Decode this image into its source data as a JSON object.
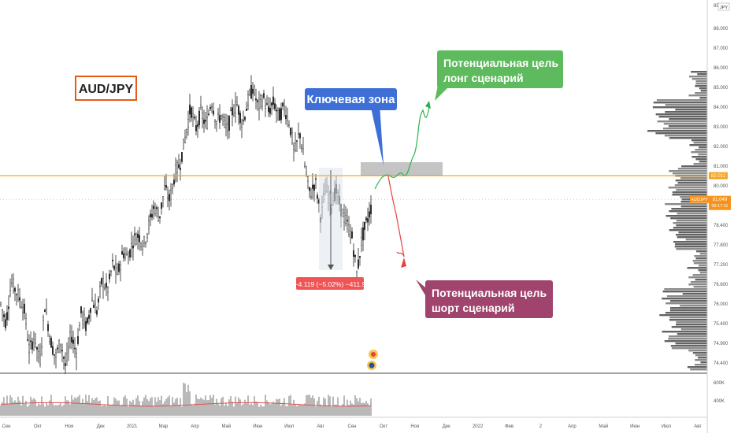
{
  "chart_data": {
    "type": "candlestick",
    "symbol": "AUD/JPY",
    "price_axis_ticks": [
      "88.000",
      "87.000",
      "86.000",
      "85.000",
      "84.000",
      "83.000",
      "82.000",
      "81.000",
      "80.000",
      "79.000",
      "78.400",
      "77.800",
      "77.200",
      "76.600",
      "76.000",
      "75.400",
      "74.900",
      "74.400"
    ],
    "price_axis_top": "85",
    "currency_badge": "JPY",
    "time_axis": [
      "Сен",
      "Окт",
      "Ноя",
      "Дек",
      "2021",
      "Мар",
      "Апр",
      "Май",
      "Июн",
      "Июл",
      "Авг",
      "Сен",
      "Окт",
      "Ноя",
      "Дек",
      "2022",
      "Фев",
      "2",
      "Апр",
      "Май",
      "Июн",
      "Июл",
      "Авг"
    ],
    "volume_axis_ticks": [
      "600K",
      "400K"
    ],
    "levels": [
      {
        "name": "key-level",
        "value": 82.011,
        "label": "82.011",
        "color": "#f5a623"
      },
      {
        "name": "last-price",
        "value": 81.049,
        "label": "81.049",
        "sublabel": "09:17:11",
        "tag": "AUDJPY",
        "color": "#f7931a"
      }
    ],
    "annotations": {
      "key_zone": "Ключевая зона",
      "long_target_line1": "Потенциальная цель",
      "long_target_line2": "лонг сценарий",
      "short_target_line1": "Потенциальная цель",
      "short_target_line2": "шорт сценарий",
      "drop_measure": "−4.119 (−5.02%) −411.9"
    },
    "colors": {
      "long": "#5dba5d",
      "short": "#a0446e",
      "key_zone": "#3d6fd6",
      "measure": "#f05454",
      "candles": "#222222",
      "volume_ma": "#e05050"
    },
    "price_path": [
      [
        0,
        76.8
      ],
      [
        4,
        76.0
      ],
      [
        8,
        77.7
      ],
      [
        12,
        77.3
      ],
      [
        18,
        76.6
      ],
      [
        22,
        74.9
      ],
      [
        26,
        75.5
      ],
      [
        30,
        74.4
      ],
      [
        34,
        76.8
      ],
      [
        38,
        75.4
      ],
      [
        42,
        74.6
      ],
      [
        46,
        75.3
      ],
      [
        50,
        74.2
      ],
      [
        54,
        75.6
      ],
      [
        58,
        74.8
      ],
      [
        62,
        76.5
      ],
      [
        66,
        75.8
      ],
      [
        70,
        77.0
      ],
      [
        74,
        76.5
      ],
      [
        78,
        77.8
      ],
      [
        82,
        77.3
      ],
      [
        86,
        78.4
      ],
      [
        90,
        78.0
      ],
      [
        94,
        78.9
      ],
      [
        98,
        78.7
      ],
      [
        102,
        79.4
      ],
      [
        106,
        79.6
      ],
      [
        110,
        79.2
      ],
      [
        114,
        80.0
      ],
      [
        118,
        80.8
      ],
      [
        122,
        80.3
      ],
      [
        126,
        81.5
      ],
      [
        130,
        81.0
      ],
      [
        134,
        82.1
      ],
      [
        138,
        82.5
      ],
      [
        142,
        83.6
      ],
      [
        146,
        84.8
      ],
      [
        150,
        83.9
      ],
      [
        154,
        84.6
      ],
      [
        158,
        84.0
      ],
      [
        162,
        85.1
      ],
      [
        166,
        84.2
      ],
      [
        170,
        84.5
      ],
      [
        174,
        83.8
      ],
      [
        178,
        84.6
      ],
      [
        182,
        84.9
      ],
      [
        186,
        84.1
      ],
      [
        190,
        85.0
      ],
      [
        194,
        85.6
      ],
      [
        198,
        84.8
      ],
      [
        202,
        85.2
      ],
      [
        206,
        84.6
      ],
      [
        210,
        85.0
      ],
      [
        214,
        84.4
      ],
      [
        218,
        84.8
      ],
      [
        222,
        84.2
      ],
      [
        226,
        82.9
      ],
      [
        230,
        83.8
      ],
      [
        234,
        82.4
      ],
      [
        238,
        81.2
      ],
      [
        242,
        81.8
      ],
      [
        246,
        80.4
      ],
      [
        250,
        81.5
      ],
      [
        254,
        80.9
      ],
      [
        258,
        81.4
      ],
      [
        262,
        80.6
      ],
      [
        266,
        80.1
      ],
      [
        270,
        79.6
      ],
      [
        274,
        78.0
      ],
      [
        278,
        79.5
      ],
      [
        282,
        80.2
      ],
      [
        286,
        80.9
      ]
    ]
  }
}
